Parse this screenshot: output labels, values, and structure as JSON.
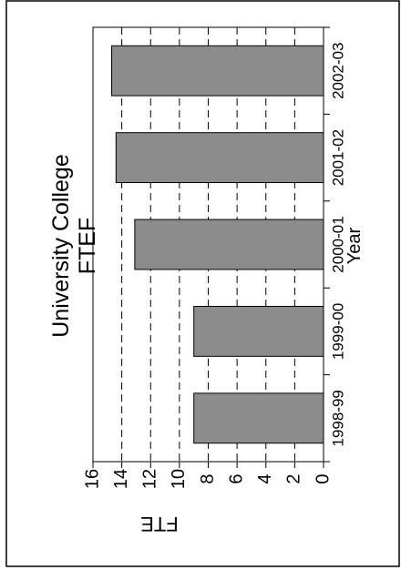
{
  "chart_data": {
    "type": "bar",
    "orientation": "horizontal",
    "rotated": "ccw-90",
    "title": "University College",
    "subtitle": "FTEF",
    "xlabel": "Year",
    "ylabel": "FTE",
    "categories": [
      "1998-99",
      "1999-00",
      "2000-01",
      "2001-02",
      "2002-03"
    ],
    "values": [
      9,
      9,
      13.1,
      14.4,
      14.7
    ],
    "ylim": [
      0,
      16
    ],
    "yticks": [
      "0",
      "2",
      "4",
      "6",
      "8",
      "10",
      "12",
      "14",
      "16"
    ],
    "grid": true,
    "grid_style": "dashed",
    "bar_color": "#8c8c8c"
  }
}
